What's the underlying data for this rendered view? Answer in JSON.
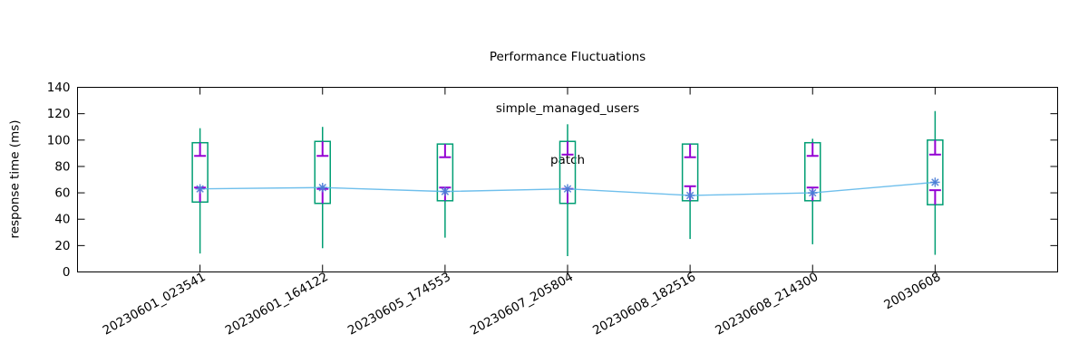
{
  "title": {
    "line1": "Performance Fluctuations",
    "line2": "simple_managed_users",
    "line3": "patch"
  },
  "axes": {
    "y_label": "response time (ms)",
    "y_ticks": [
      0,
      20,
      40,
      60,
      80,
      100,
      120,
      140
    ],
    "y_min": 0,
    "y_max": 140
  },
  "colors": {
    "box": "#009e73",
    "median_marks": "#9400d3",
    "mean_line": "#56b4e9",
    "mean_marker": "#4a7dd6",
    "border": "#000000",
    "text": "#000000",
    "background": "#ffffff"
  },
  "chart_data": {
    "type": "boxplot",
    "title": "Performance Fluctuations",
    "subtitle1": "simple_managed_users",
    "subtitle2": "patch",
    "xlabel": "",
    "ylabel": "response time (ms)",
    "ylim": [
      0,
      140
    ],
    "y_ticks": [
      0,
      20,
      40,
      60,
      80,
      100,
      120,
      140
    ],
    "grid": false,
    "legend": "none",
    "categories": [
      "20230601_023541",
      "20230601_164122",
      "20230605_174553",
      "20230607_205804",
      "20230608_182516",
      "20230608_214300",
      "20030608"
    ],
    "boxes": [
      {
        "label": "20230601_023541",
        "whisker_low": 14,
        "q1": 53,
        "tick_low": 64,
        "mean": 63,
        "tick_high": 88,
        "q3": 98,
        "whisker_high": 109
      },
      {
        "label": "20230601_164122",
        "whisker_low": 18,
        "q1": 52,
        "tick_low": 63,
        "mean": 64,
        "tick_high": 88,
        "q3": 99,
        "whisker_high": 110
      },
      {
        "label": "20230605_174553",
        "whisker_low": 26,
        "q1": 54,
        "tick_low": 64,
        "mean": 61,
        "tick_high": 87,
        "q3": 97,
        "whisker_high": 97
      },
      {
        "label": "20230607_205804",
        "whisker_low": 12,
        "q1": 52,
        "tick_low": 63,
        "mean": 63,
        "tick_high": 89,
        "q3": 99,
        "whisker_high": 112
      },
      {
        "label": "20230608_182516",
        "whisker_low": 25,
        "q1": 54,
        "tick_low": 65,
        "mean": 58,
        "tick_high": 87,
        "q3": 97,
        "whisker_high": 97
      },
      {
        "label": "20230608_214300",
        "whisker_low": 21,
        "q1": 54,
        "tick_low": 64,
        "mean": 60,
        "tick_high": 88,
        "q3": 98,
        "whisker_high": 101
      },
      {
        "label": "20030608",
        "whisker_low": 13,
        "q1": 51,
        "tick_low": 62,
        "mean": 68,
        "tick_high": 89,
        "q3": 100,
        "whisker_high": 122
      }
    ],
    "mean_series": {
      "name": "mean",
      "values": [
        63,
        64,
        61,
        63,
        58,
        60,
        68
      ]
    }
  }
}
